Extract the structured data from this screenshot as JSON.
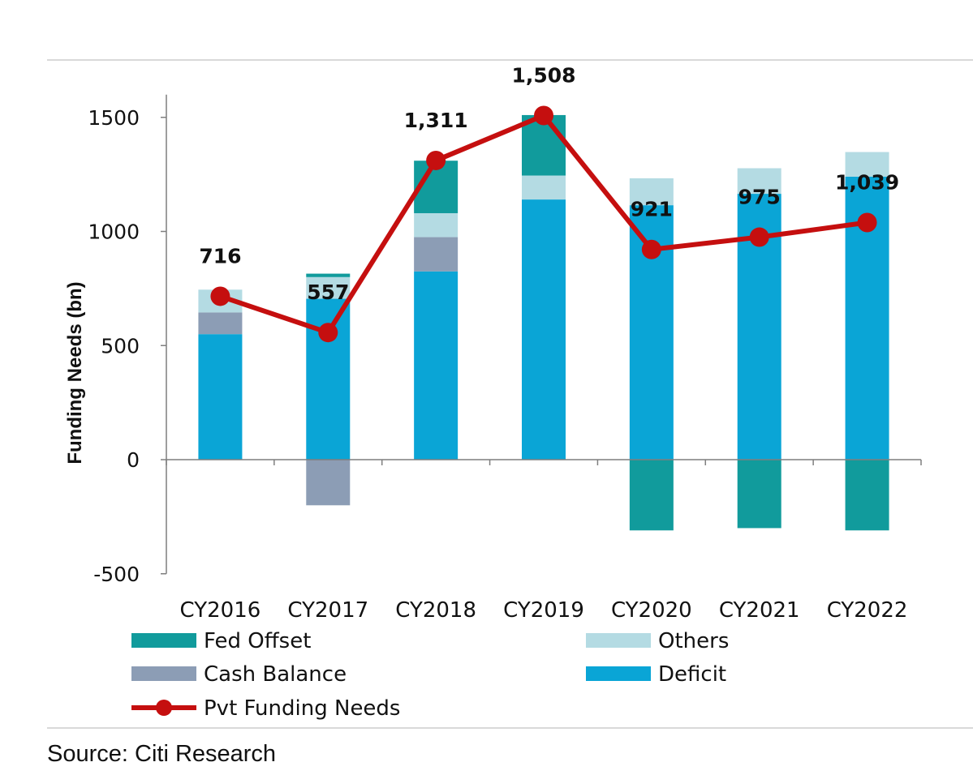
{
  "chart_data": {
    "type": "bar",
    "stacked": true,
    "title": "",
    "xlabel": "",
    "ylabel": "Funding Needs (bn)",
    "ylim": [
      -500,
      1500
    ],
    "yticks": [
      1500,
      1000,
      500,
      0,
      -500
    ],
    "ytick_labels": [
      "1500",
      "1000",
      "500",
      "0",
      "-500"
    ],
    "categories": [
      "CY2016",
      "CY2017",
      "CY2018",
      "CY2019",
      "CY2020",
      "CY2021",
      "CY2022"
    ],
    "series": [
      {
        "name": "Deficit",
        "key": "deficit",
        "color": "#0aa5d6",
        "values": [
          550,
          705,
          825,
          1140,
          1115,
          1165,
          1240
        ]
      },
      {
        "name": "Cash Balance",
        "key": "cash",
        "color": "#8c9db5",
        "values": [
          95,
          -200,
          150,
          0,
          0,
          0,
          0
        ]
      },
      {
        "name": "Others",
        "key": "others",
        "color": "#b4dbe3",
        "values": [
          100,
          95,
          105,
          105,
          118,
          112,
          108
        ]
      },
      {
        "name": "Fed Offset",
        "key": "fed",
        "color": "#119b9c",
        "values": [
          0,
          15,
          230,
          265,
          -310,
          -300,
          -310
        ]
      }
    ],
    "line_series": {
      "name": "Pvt Funding Needs",
      "color": "#c50f0f",
      "values": [
        716,
        557,
        1311,
        1508,
        921,
        975,
        1039
      ],
      "labels": [
        "716",
        "557",
        "1,311",
        "1,508",
        "921",
        "975",
        "1,039"
      ]
    },
    "legend": [
      {
        "name": "Fed Offset",
        "kind": "bar",
        "color": "#119b9c"
      },
      {
        "name": "Others",
        "kind": "bar",
        "color": "#b4dbe3"
      },
      {
        "name": "Cash Balance",
        "kind": "bar",
        "color": "#8c9db5"
      },
      {
        "name": "Deficit",
        "kind": "bar",
        "color": "#0aa5d6"
      },
      {
        "name": "Pvt Funding Needs",
        "kind": "line",
        "color": "#c50f0f"
      }
    ],
    "legend_position": "bottom",
    "grid": false
  },
  "source": "Source: Citi Research"
}
